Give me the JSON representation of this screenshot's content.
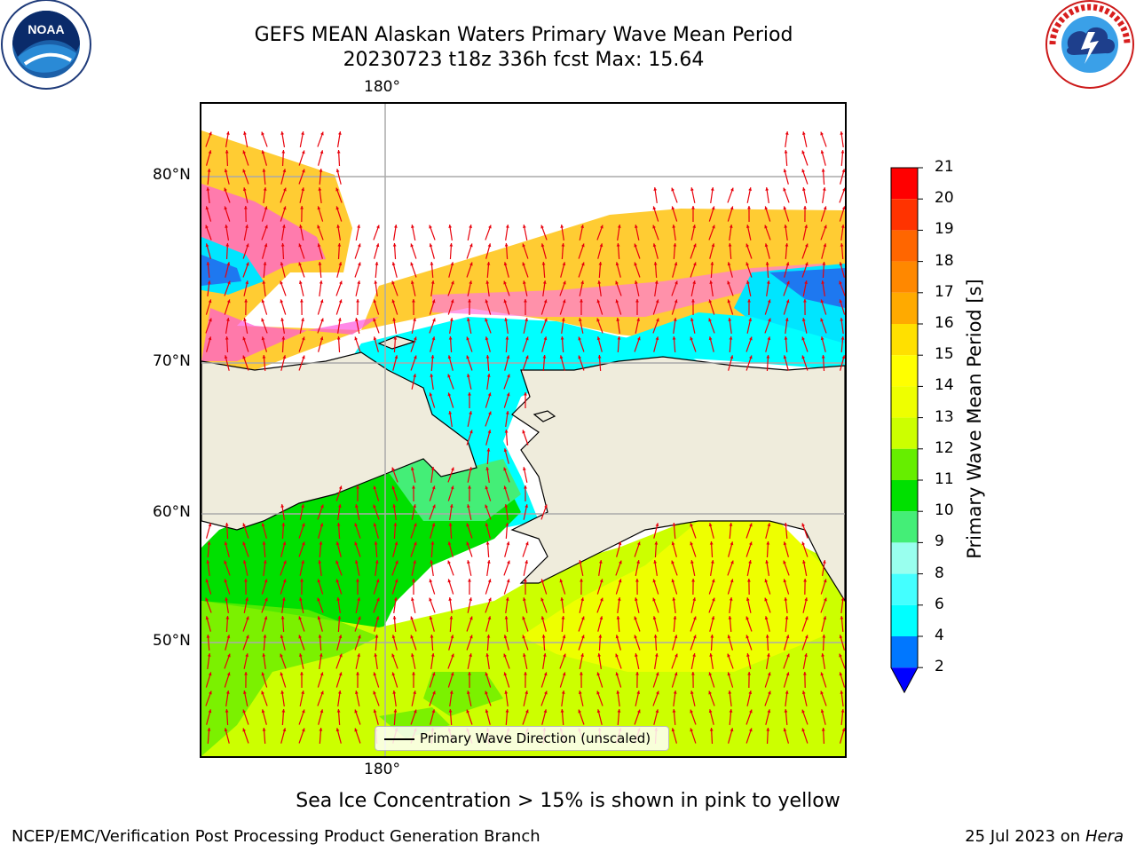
{
  "header": {
    "title_line1": "GEFS MEAN Alaskan Waters Primary Wave Mean Period",
    "title_line2": "20230723 t18z 336h fcst   Max: 15.64"
  },
  "logos": {
    "noaa": {
      "text": "NOAA",
      "ring_text": "NATIONAL OCEANIC AND ATMOSPHERIC ADMINISTRATION · U.S. DEPARTMENT OF COMMERCE"
    },
    "nws": {
      "ring_text": "NATIONAL WEATHER SERVICE"
    }
  },
  "map": {
    "lon_label_top": "180°",
    "lon_label_bottom": "180°",
    "lat_labels": [
      "80°N",
      "70°N",
      "60°N",
      "50°N"
    ],
    "legend": "Primary Wave Direction (unscaled)",
    "arrow_color": "#e8000b",
    "land_color": "#efecdc"
  },
  "colorbar": {
    "title": "Primary Wave Mean Period [s]",
    "levels": [
      "21",
      "20",
      "19",
      "18",
      "17",
      "16",
      "15",
      "14",
      "13",
      "12",
      "11",
      "10",
      "9",
      "8",
      "6",
      "4",
      "2"
    ],
    "colors": [
      "#ff0000",
      "#ff3300",
      "#ff6600",
      "#ff8800",
      "#ffaa00",
      "#ffe000",
      "#ffff00",
      "#eeff00",
      "#ccff00",
      "#66ee00",
      "#00e000",
      "#44ee77",
      "#99ffee",
      "#44ffff",
      "#00ffff",
      "#0077ff",
      "#0000ff"
    ]
  },
  "note": "Sea Ice Concentration > 15% is shown in pink to yellow",
  "footer": {
    "left": "NCEP/EMC/Verification Post Processing Product Generation Branch",
    "right_prefix": "25 Jul 2023 on",
    "right_host": "Hera"
  }
}
